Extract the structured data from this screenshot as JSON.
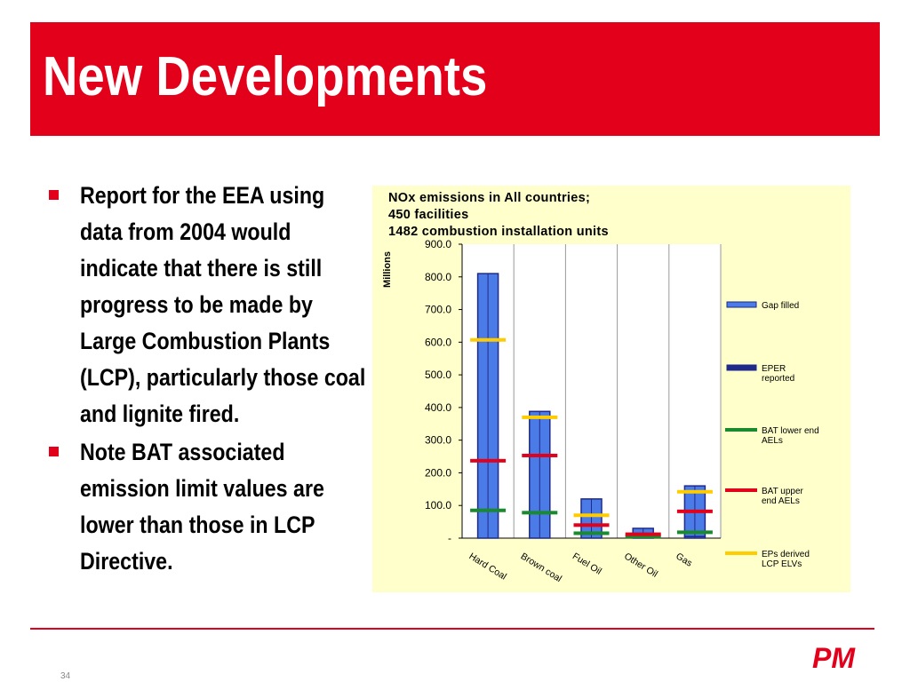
{
  "slide": {
    "title": "New Developments",
    "bullets": [
      "Report for the EEA using data from 2004 would indicate that there is still progress to be made by Large Combustion Plants (LCP), particularly those coal and lignite fired.",
      "Note BAT associated emission limit values are lower than those in LCP Directive."
    ],
    "page_number": "34",
    "logo_text": "PM"
  },
  "colors": {
    "accent": "#e3001b",
    "chart_background": "#ffffcc",
    "gap_filled": "#4a7be6",
    "eper_reported": "#1f2a8a",
    "bat_lower": "#1a8a2e",
    "bat_upper": "#e3001b",
    "eps_derived": "#ffcc00"
  },
  "chart_data": {
    "type": "bar",
    "title_lines": [
      "NOx emissions in All countries;",
      "450 facilities",
      "1482 combustion installation units"
    ],
    "ylabel": "Millions",
    "ylim": [
      0,
      900
    ],
    "yticks": [
      "-",
      "100.0",
      "200.0",
      "300.0",
      "400.0",
      "500.0",
      "600.0",
      "700.0",
      "800.0",
      "900.0"
    ],
    "grid": "vertical",
    "legend_position": "right",
    "categories": [
      "Hard Coal",
      "Brown coal",
      "Fuel Oil",
      "Other Oil",
      "Gas"
    ],
    "bar_series": [
      {
        "name": "Gap filled",
        "values": [
          0,
          0,
          0,
          0,
          5
        ]
      },
      {
        "name": "EPER reported",
        "values": [
          810,
          388,
          120,
          30,
          155
        ]
      }
    ],
    "marker_series": [
      {
        "name": "BAT lower end AELs",
        "values": [
          85,
          78,
          15,
          5,
          18
        ]
      },
      {
        "name": "BAT upper end AELs",
        "values": [
          237,
          253,
          40,
          12,
          82
        ]
      },
      {
        "name": "EPs derived LCP ELVs",
        "values": [
          607,
          370,
          70,
          null,
          142
        ]
      }
    ],
    "legend": [
      "Gap filled",
      "EPER reported",
      "BAT lower end AELs",
      "BAT upper end AELs",
      "EPs derived LCP ELVs"
    ]
  }
}
